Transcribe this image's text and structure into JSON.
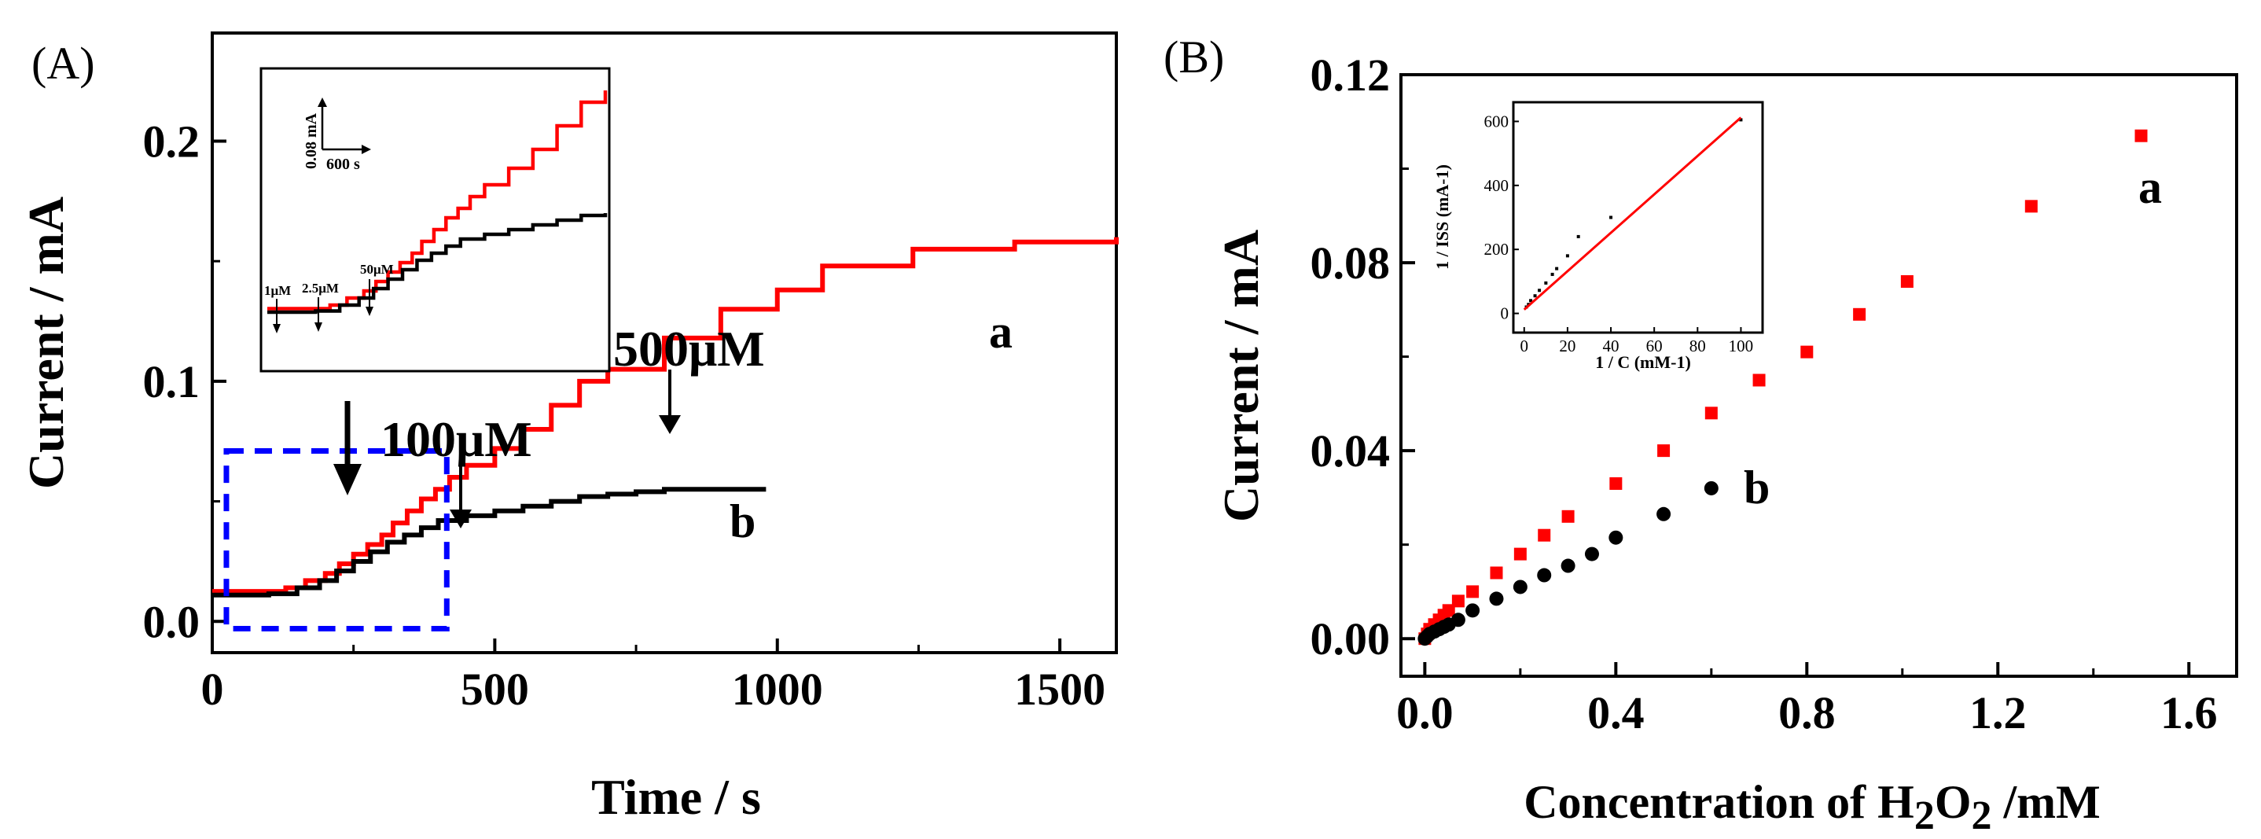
{
  "colors": {
    "red": "#ff0000",
    "black": "#000000",
    "blue": "#0000ff"
  },
  "chart_data": [
    {
      "panel_label": "(A)",
      "type": "line",
      "xlabel": "Time / s",
      "ylabel": "Current / mA",
      "xlim": [
        0,
        1600
      ],
      "ylim": [
        -0.013,
        0.245
      ],
      "xticks": [
        0,
        500,
        1000,
        1500
      ],
      "yticks": [
        0.0,
        0.1,
        0.2
      ],
      "xtick_labels": [
        "0",
        "500",
        "1000",
        "1500"
      ],
      "ytick_labels": [
        "0.0",
        "0.1",
        "0.2"
      ],
      "series": [
        {
          "name": "a",
          "color": "#ff0000",
          "step_times": [
            0,
            130,
            165,
            200,
            225,
            250,
            275,
            300,
            320,
            345,
            370,
            395,
            420,
            450,
            500,
            550,
            600,
            650,
            700,
            800,
            900,
            1000,
            1080,
            1240,
            1420,
            1600
          ],
          "step_values": [
            0.0125,
            0.014,
            0.017,
            0.02,
            0.024,
            0.028,
            0.032,
            0.036,
            0.041,
            0.046,
            0.051,
            0.055,
            0.06,
            0.065,
            0.072,
            0.08,
            0.09,
            0.1,
            0.105,
            0.118,
            0.13,
            0.138,
            0.148,
            0.155,
            0.158,
            0.16
          ]
        },
        {
          "name": "b",
          "color": "#000000",
          "step_times": [
            0,
            100,
            150,
            190,
            220,
            250,
            280,
            310,
            340,
            370,
            400,
            450,
            500,
            550,
            600,
            650,
            700,
            750,
            800,
            850,
            900,
            980
          ],
          "step_values": [
            0.011,
            0.0115,
            0.014,
            0.017,
            0.021,
            0.025,
            0.029,
            0.033,
            0.036,
            0.039,
            0.042,
            0.044,
            0.046,
            0.048,
            0.05,
            0.052,
            0.053,
            0.054,
            0.055,
            0.055,
            0.055,
            0.055
          ]
        }
      ],
      "series_labels": [
        "a",
        "b"
      ],
      "annotations": [
        {
          "text": "500μM",
          "arrow_to_x": 810,
          "arrow_to_y": 0.118
        },
        {
          "text": "100μM",
          "arrow_to_x": 440,
          "arrow_to_y": 0.058
        }
      ],
      "zoom_box": {
        "x_range": [
          25,
          415
        ],
        "y_range": [
          -0.003,
          0.071
        ]
      },
      "inset": {
        "scale_bar_current": "0.08 mA",
        "scale_bar_time": "600 s",
        "marker_labels": [
          "1μM",
          "2.5μM",
          "50μM"
        ]
      }
    },
    {
      "panel_label": "(B)",
      "type": "scatter",
      "xlabel_prefix": "Concentration of H",
      "xlabel_sub1": "2",
      "xlabel_mid": "O",
      "xlabel_sub2": "2",
      "xlabel_suffix": " /mM",
      "ylabel": "Current / mA",
      "xlim": [
        -0.05,
        1.7
      ],
      "ylim": [
        -0.008,
        0.12
      ],
      "xticks": [
        0.0,
        0.4,
        0.8,
        1.2,
        1.6
      ],
      "yticks": [
        0.0,
        0.04,
        0.08,
        0.12
      ],
      "xtick_labels": [
        "0.0",
        "0.4",
        "0.8",
        "1.2",
        "1.6"
      ],
      "ytick_labels": [
        "0.00",
        "0.04",
        "0.08",
        "0.12"
      ],
      "series": [
        {
          "name": "a",
          "marker": "square",
          "color": "#ff0000",
          "x": [
            0.0,
            0.005,
            0.01,
            0.02,
            0.03,
            0.04,
            0.05,
            0.07,
            0.1,
            0.15,
            0.2,
            0.25,
            0.3,
            0.4,
            0.5,
            0.6,
            0.7,
            0.8,
            0.91,
            1.01,
            1.27,
            1.5
          ],
          "y": [
            0.0,
            0.001,
            0.002,
            0.003,
            0.004,
            0.005,
            0.006,
            0.008,
            0.01,
            0.014,
            0.018,
            0.022,
            0.026,
            0.033,
            0.04,
            0.048,
            0.055,
            0.061,
            0.069,
            0.076,
            0.092,
            0.107
          ]
        },
        {
          "name": "b",
          "marker": "circle",
          "color": "#000000",
          "x": [
            0.0,
            0.005,
            0.01,
            0.02,
            0.03,
            0.04,
            0.05,
            0.07,
            0.1,
            0.15,
            0.2,
            0.25,
            0.3,
            0.35,
            0.4,
            0.5,
            0.6
          ],
          "y": [
            0.0,
            0.0005,
            0.001,
            0.0015,
            0.002,
            0.0025,
            0.003,
            0.004,
            0.006,
            0.0085,
            0.011,
            0.0135,
            0.0155,
            0.018,
            0.0215,
            0.0265,
            0.032
          ]
        }
      ],
      "series_labels": [
        "a",
        "b"
      ],
      "inset": {
        "type": "scatter+line",
        "xlabel": "1 / C (mM-1)",
        "ylabel": "1 / ISS (mA-1)",
        "xlim": [
          -5,
          110
        ],
        "ylim": [
          -60,
          660
        ],
        "xticks": [
          0,
          20,
          40,
          60,
          80,
          100
        ],
        "yticks": [
          0,
          200,
          400,
          600
        ],
        "xtick_labels": [
          "0",
          "20",
          "40",
          "60",
          "80",
          "100"
        ],
        "ytick_labels": [
          "0",
          "200",
          "400",
          "600"
        ],
        "points_x": [
          1,
          2,
          3,
          5,
          7,
          10,
          13,
          15,
          20,
          25,
          40,
          100
        ],
        "points_y": [
          20,
          28,
          40,
          55,
          72,
          95,
          122,
          140,
          180,
          240,
          300,
          605
        ],
        "fit_line": {
          "slope": 6.0,
          "intercept": 12
        }
      }
    }
  ]
}
